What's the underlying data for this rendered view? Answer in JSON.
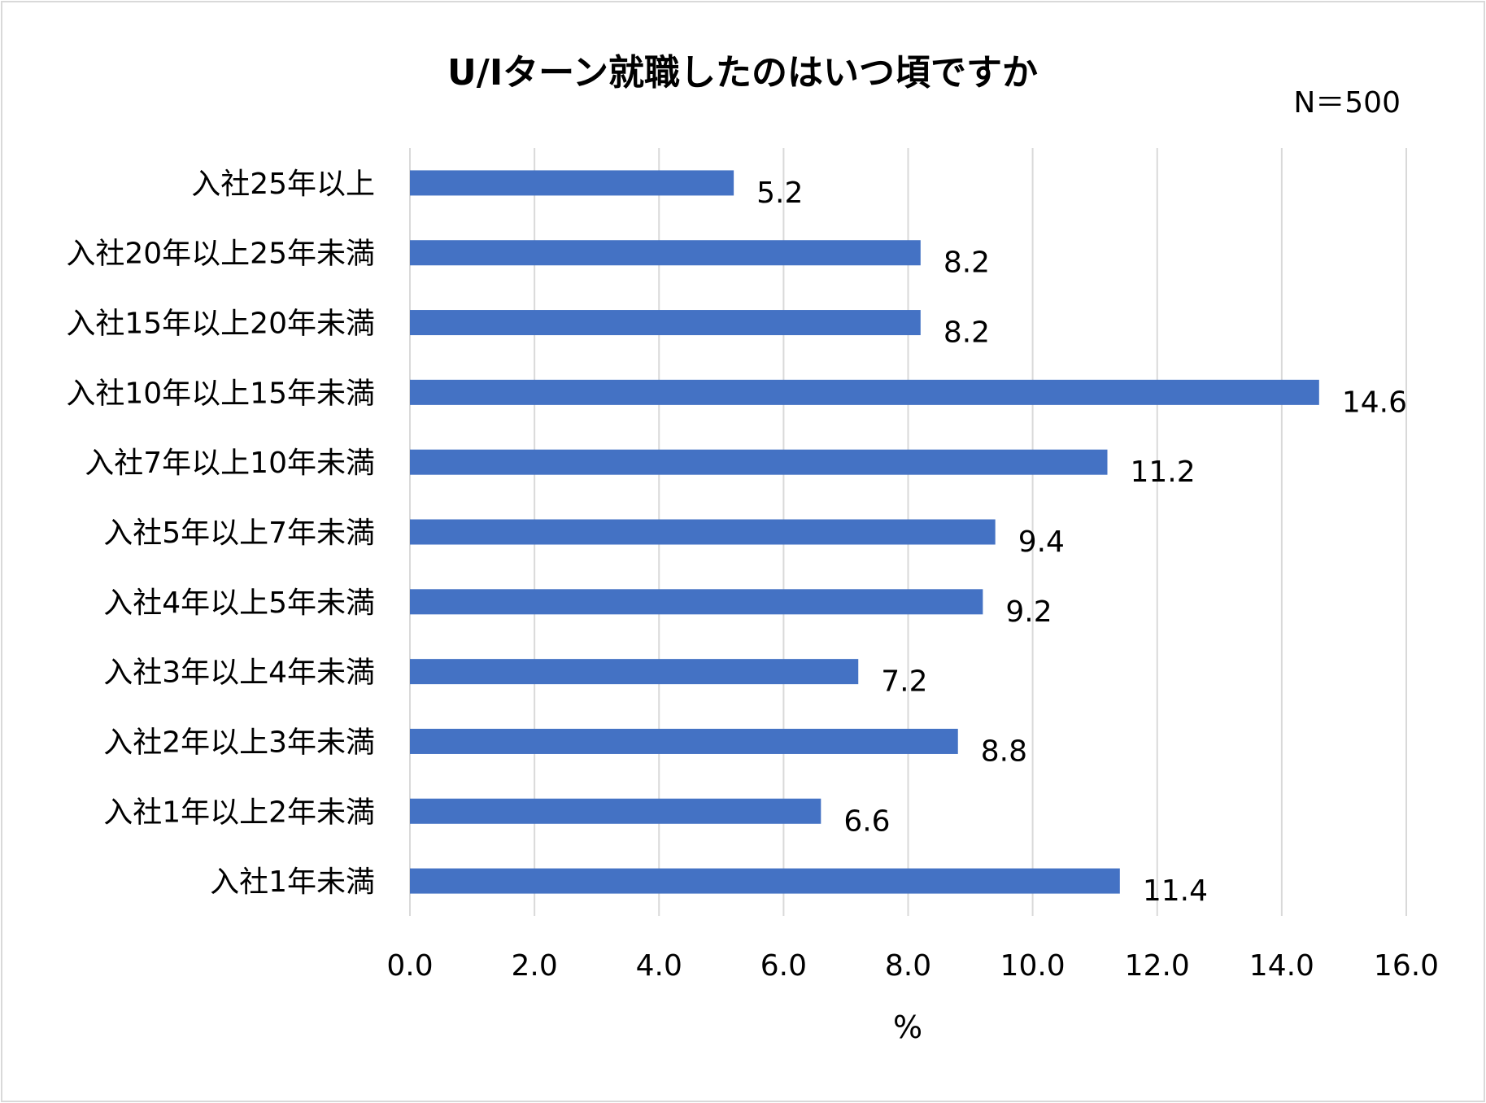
{
  "chart_data": {
    "type": "bar",
    "orientation": "horizontal",
    "title": "U/Iターン就職したのはいつ頃ですか",
    "sample_size": "N＝500",
    "xlabel": "%",
    "ylabel": "",
    "xlim": [
      0,
      16
    ],
    "ticks": [
      "0.0",
      "2.0",
      "4.0",
      "6.0",
      "8.0",
      "10.0",
      "12.0",
      "14.0",
      "16.0"
    ],
    "grid": true,
    "bar_color": "#4472c4",
    "categories": [
      "入社25年以上",
      "入社20年以上25年未満",
      "入社15年以上20年未満",
      "入社10年以上15年未満",
      "入社7年以上10年未満",
      "入社5年以上7年未満",
      "入社4年以上5年未満",
      "入社3年以上4年未満",
      "入社2年以上3年未満",
      "入社1年以上2年未満",
      "入社1年未満"
    ],
    "values": [
      5.2,
      8.2,
      8.2,
      14.6,
      11.2,
      9.4,
      9.2,
      7.2,
      8.8,
      6.6,
      11.4
    ],
    "value_labels": [
      "5.2",
      "8.2",
      "8.2",
      "14.6",
      "11.2",
      "9.4",
      "9.2",
      "7.2",
      "8.8",
      "6.6",
      "11.4"
    ]
  }
}
